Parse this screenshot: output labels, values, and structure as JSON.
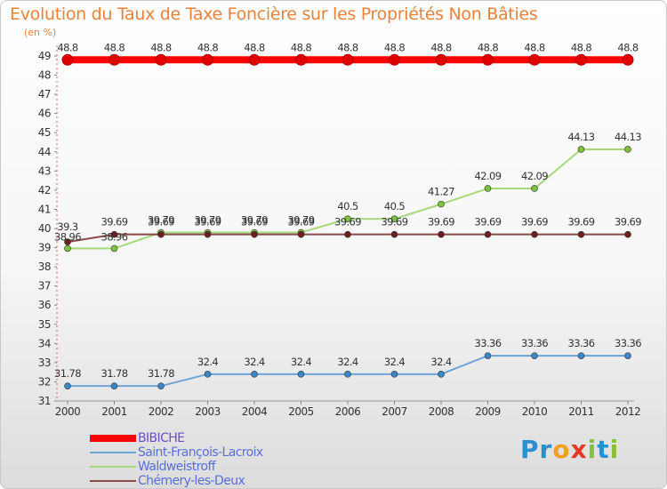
{
  "title": "Evolution du Taux de Taxe Foncière sur les Propriétés Non Bâties",
  "unit_label": "(en %)",
  "logo": {
    "text": "Proxiti",
    "letters": [
      {
        "ch": "P",
        "color": "#2a8fd0"
      },
      {
        "ch": "r",
        "color": "#2a8fd0"
      },
      {
        "ch": "o",
        "color": "#f0a020"
      },
      {
        "ch": "x",
        "color": "#e33b2a"
      },
      {
        "ch": "i",
        "color": "#8bbf3a"
      },
      {
        "ch": "t",
        "color": "#2a8fd0"
      },
      {
        "ch": "i",
        "color": "#8bbf3a"
      }
    ]
  },
  "chart_data": {
    "type": "line",
    "title": "Evolution du Taux de Taxe Foncière sur les Propriétés Non Bâties",
    "ylabel": "(en %)",
    "xlabel": "",
    "ylim": [
      31,
      49
    ],
    "y_ticks": [
      31,
      32,
      33,
      34,
      35,
      36,
      37,
      38,
      39,
      40,
      41,
      42,
      43,
      44,
      45,
      46,
      47,
      48,
      49
    ],
    "categories": [
      "2000",
      "2001",
      "2002",
      "2003",
      "2004",
      "2005",
      "2006",
      "2007",
      "2008",
      "2009",
      "2010",
      "2011",
      "2012"
    ],
    "grid": false,
    "legend_position": "bottom-left",
    "series": [
      {
        "name": "BIBICHE",
        "color": "#ff0000",
        "thick": true,
        "values": [
          48.8,
          48.8,
          48.8,
          48.8,
          48.8,
          48.8,
          48.8,
          48.8,
          48.8,
          48.8,
          48.8,
          48.8,
          48.8
        ],
        "labels": [
          "48.8",
          "48.8",
          "48.8",
          "48.8",
          "48.8",
          "48.8",
          "48.8",
          "48.8",
          "48.8",
          "48.8",
          "48.8",
          "48.8",
          "48.8"
        ]
      },
      {
        "name": "Saint-François-Lacroix",
        "color": "#6fa3d6",
        "marker": "#3a86c6",
        "values": [
          31.78,
          31.78,
          31.78,
          32.4,
          32.4,
          32.4,
          32.4,
          32.4,
          32.4,
          33.36,
          33.36,
          33.36,
          33.36
        ],
        "labels": [
          "31.78",
          "31.78",
          "31.78",
          "32.4",
          "32.4",
          "32.4",
          "32.4",
          "32.4",
          "32.4",
          "33.36",
          "33.36",
          "33.36",
          "33.36"
        ]
      },
      {
        "name": "Waldweistroff",
        "color": "#a6d97a",
        "marker": "#7cc23c",
        "values": [
          38.96,
          38.96,
          39.79,
          39.79,
          39.79,
          39.79,
          40.5,
          40.5,
          41.27,
          42.09,
          42.09,
          44.13,
          44.13
        ],
        "labels": [
          "38.96",
          "38.96",
          "39.79",
          "39.79",
          "39.79",
          "39.79",
          "40.5",
          "40.5",
          "41.27",
          "42.09",
          "42.09",
          "44.13",
          "44.13"
        ]
      },
      {
        "name": "Chémery-les-Deux",
        "color": "#8a4a4a",
        "marker": "#6b1f1f",
        "values": [
          39.3,
          39.69,
          39.69,
          39.69,
          39.69,
          39.69,
          39.69,
          39.69,
          39.69,
          39.69,
          39.69,
          39.69,
          39.69
        ],
        "labels": [
          "39.3",
          "39.69",
          "39.69",
          "39.69",
          "39.69",
          "39.69",
          "39.69",
          "39.69",
          "39.69",
          "39.69",
          "39.69",
          "39.69",
          "39.69"
        ]
      }
    ]
  }
}
